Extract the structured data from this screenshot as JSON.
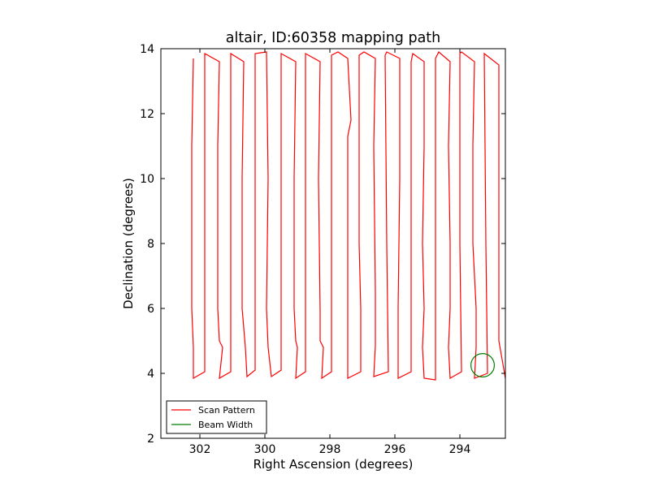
{
  "chart_data": {
    "type": "line",
    "title": "altair, ID:60358 mapping path",
    "xlabel": "Right Ascension (degrees)",
    "ylabel": "Declination (degrees)",
    "xlim": [
      303.2,
      292.6
    ],
    "ylim": [
      2,
      14
    ],
    "x_ticks": [
      302,
      300,
      298,
      296,
      294
    ],
    "y_ticks": [
      2,
      4,
      6,
      8,
      10,
      12,
      14
    ],
    "grid": false,
    "legend_position": "lower-left",
    "series": [
      {
        "name": "Scan Pattern",
        "color": "#ff0000",
        "kind": "line",
        "points": [
          [
            302.2,
            13.7
          ],
          [
            302.25,
            11.0
          ],
          [
            302.25,
            8.0
          ],
          [
            302.25,
            6.0
          ],
          [
            302.2,
            4.8
          ],
          [
            302.2,
            4.05
          ],
          [
            302.2,
            3.85
          ],
          [
            301.85,
            4.05
          ],
          [
            301.85,
            6.0
          ],
          [
            301.85,
            8.0
          ],
          [
            301.85,
            10.0
          ],
          [
            301.85,
            12.0
          ],
          [
            301.85,
            13.85
          ],
          [
            301.4,
            13.6
          ],
          [
            301.45,
            11.0
          ],
          [
            301.45,
            8.0
          ],
          [
            301.45,
            6.0
          ],
          [
            301.4,
            5.0
          ],
          [
            301.3,
            4.8
          ],
          [
            301.4,
            3.85
          ],
          [
            301.05,
            4.05
          ],
          [
            301.05,
            8.0
          ],
          [
            301.05,
            13.85
          ],
          [
            300.65,
            13.6
          ],
          [
            300.7,
            10.0
          ],
          [
            300.7,
            6.0
          ],
          [
            300.6,
            4.8
          ],
          [
            300.55,
            3.9
          ],
          [
            300.3,
            4.1
          ],
          [
            300.3,
            8.0
          ],
          [
            300.3,
            13.85
          ],
          [
            299.95,
            13.9
          ],
          [
            299.9,
            10.0
          ],
          [
            299.95,
            6.0
          ],
          [
            299.9,
            4.8
          ],
          [
            299.8,
            3.9
          ],
          [
            299.5,
            4.1
          ],
          [
            299.5,
            8.0
          ],
          [
            299.5,
            13.85
          ],
          [
            299.05,
            13.6
          ],
          [
            299.1,
            10.0
          ],
          [
            299.1,
            6.0
          ],
          [
            299.05,
            5.0
          ],
          [
            299.0,
            4.8
          ],
          [
            299.05,
            3.85
          ],
          [
            298.75,
            4.05
          ],
          [
            298.75,
            8.0
          ],
          [
            298.75,
            13.85
          ],
          [
            298.3,
            13.6
          ],
          [
            298.35,
            10.0
          ],
          [
            298.3,
            5.9
          ],
          [
            298.3,
            5.0
          ],
          [
            298.2,
            4.8
          ],
          [
            298.25,
            3.85
          ],
          [
            297.95,
            4.05
          ],
          [
            297.95,
            8.0
          ],
          [
            297.95,
            13.8
          ],
          [
            297.75,
            13.9
          ],
          [
            297.45,
            13.7
          ],
          [
            297.35,
            11.8
          ],
          [
            297.45,
            11.3
          ],
          [
            297.45,
            8.0
          ],
          [
            297.45,
            6.0
          ],
          [
            297.45,
            4.8
          ],
          [
            297.45,
            3.85
          ],
          [
            297.05,
            4.05
          ],
          [
            297.05,
            6.0
          ],
          [
            297.1,
            8.0
          ],
          [
            297.1,
            11.0
          ],
          [
            297.1,
            13.8
          ],
          [
            296.95,
            13.9
          ],
          [
            296.6,
            13.7
          ],
          [
            296.65,
            11.0
          ],
          [
            296.6,
            6.5
          ],
          [
            296.6,
            4.85
          ],
          [
            296.65,
            3.9
          ],
          [
            296.2,
            4.05
          ],
          [
            296.25,
            8.0
          ],
          [
            296.3,
            13.8
          ],
          [
            296.25,
            13.9
          ],
          [
            295.85,
            13.7
          ],
          [
            295.85,
            10.0
          ],
          [
            295.9,
            6.0
          ],
          [
            295.9,
            4.8
          ],
          [
            295.9,
            3.85
          ],
          [
            295.5,
            4.05
          ],
          [
            295.5,
            8.0
          ],
          [
            295.5,
            13.6
          ],
          [
            295.45,
            13.85
          ],
          [
            295.1,
            13.6
          ],
          [
            295.1,
            11.0
          ],
          [
            295.15,
            8.0
          ],
          [
            295.1,
            6.0
          ],
          [
            295.15,
            4.8
          ],
          [
            295.1,
            3.85
          ],
          [
            294.75,
            3.8
          ],
          [
            294.75,
            8.0
          ],
          [
            294.75,
            13.7
          ],
          [
            294.65,
            13.9
          ],
          [
            294.3,
            13.6
          ],
          [
            294.35,
            11.0
          ],
          [
            294.3,
            8.0
          ],
          [
            294.3,
            6.0
          ],
          [
            294.35,
            4.8
          ],
          [
            294.3,
            3.85
          ],
          [
            293.95,
            4.05
          ],
          [
            294.0,
            8.0
          ],
          [
            294.0,
            13.85
          ],
          [
            293.95,
            13.9
          ],
          [
            293.55,
            13.6
          ],
          [
            293.6,
            11.0
          ],
          [
            293.6,
            8.0
          ],
          [
            293.5,
            6.0
          ],
          [
            293.5,
            4.8
          ],
          [
            293.55,
            3.85
          ],
          [
            293.15,
            4.0
          ],
          [
            293.2,
            8.0
          ],
          [
            293.25,
            13.85
          ],
          [
            292.8,
            13.5
          ],
          [
            292.8,
            8.0
          ],
          [
            292.8,
            5.0
          ],
          [
            292.6,
            3.85
          ]
        ]
      },
      {
        "name": "Beam Width",
        "color": "#007f00",
        "kind": "circle",
        "center": [
          293.3,
          4.25
        ],
        "radius": 0.36
      }
    ]
  }
}
